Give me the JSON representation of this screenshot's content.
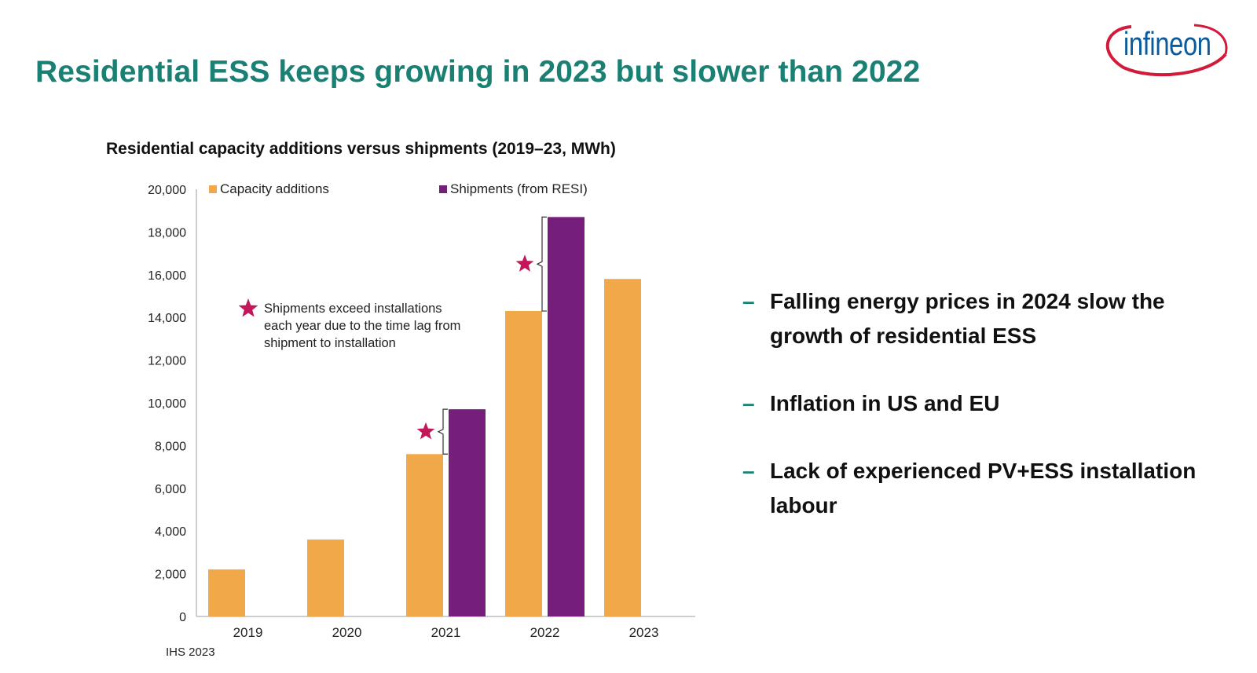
{
  "header": {
    "title": "Residential ESS keeps growing in 2023 but slower than 2022",
    "logo_text": "infineon"
  },
  "chart_data": {
    "type": "bar",
    "title": "Residential capacity additions versus shipments (2019–23, MWh)",
    "categories": [
      "2019",
      "2020",
      "2021",
      "2022",
      "2023"
    ],
    "series": [
      {
        "name": "Capacity additions",
        "color": "#f0a848",
        "values": [
          2200,
          3600,
          7600,
          14300,
          15800
        ]
      },
      {
        "name": "Shipments (from RESI)",
        "color": "#761e7c",
        "values": [
          null,
          null,
          9700,
          18700,
          null
        ]
      }
    ],
    "ylim": [
      0,
      20000
    ],
    "yticks": [
      "0",
      "2,000",
      "4,000",
      "6,000",
      "8,000",
      "10,000",
      "12,000",
      "14,000",
      "16,000",
      "18,000",
      "20,000"
    ],
    "legend_position": "top",
    "annotation": {
      "lines": [
        "Shipments exceed installations",
        "each year due to the time lag from",
        "shipment to installation"
      ],
      "marker": "star",
      "marker_color": "#c2185b"
    },
    "grid": false,
    "source": "IHS 2023"
  },
  "bullets": [
    {
      "dash": "–",
      "text_line1": "Falling energy prices in 2024 slow the",
      "text_line2": "growth of residential ESS"
    },
    {
      "dash": "–",
      "text_line1": "Inflation in US and EU",
      "text_line2": ""
    },
    {
      "dash": "–",
      "text_line1": "Lack of experienced PV+ESS installation",
      "text_line2": "labour"
    }
  ]
}
